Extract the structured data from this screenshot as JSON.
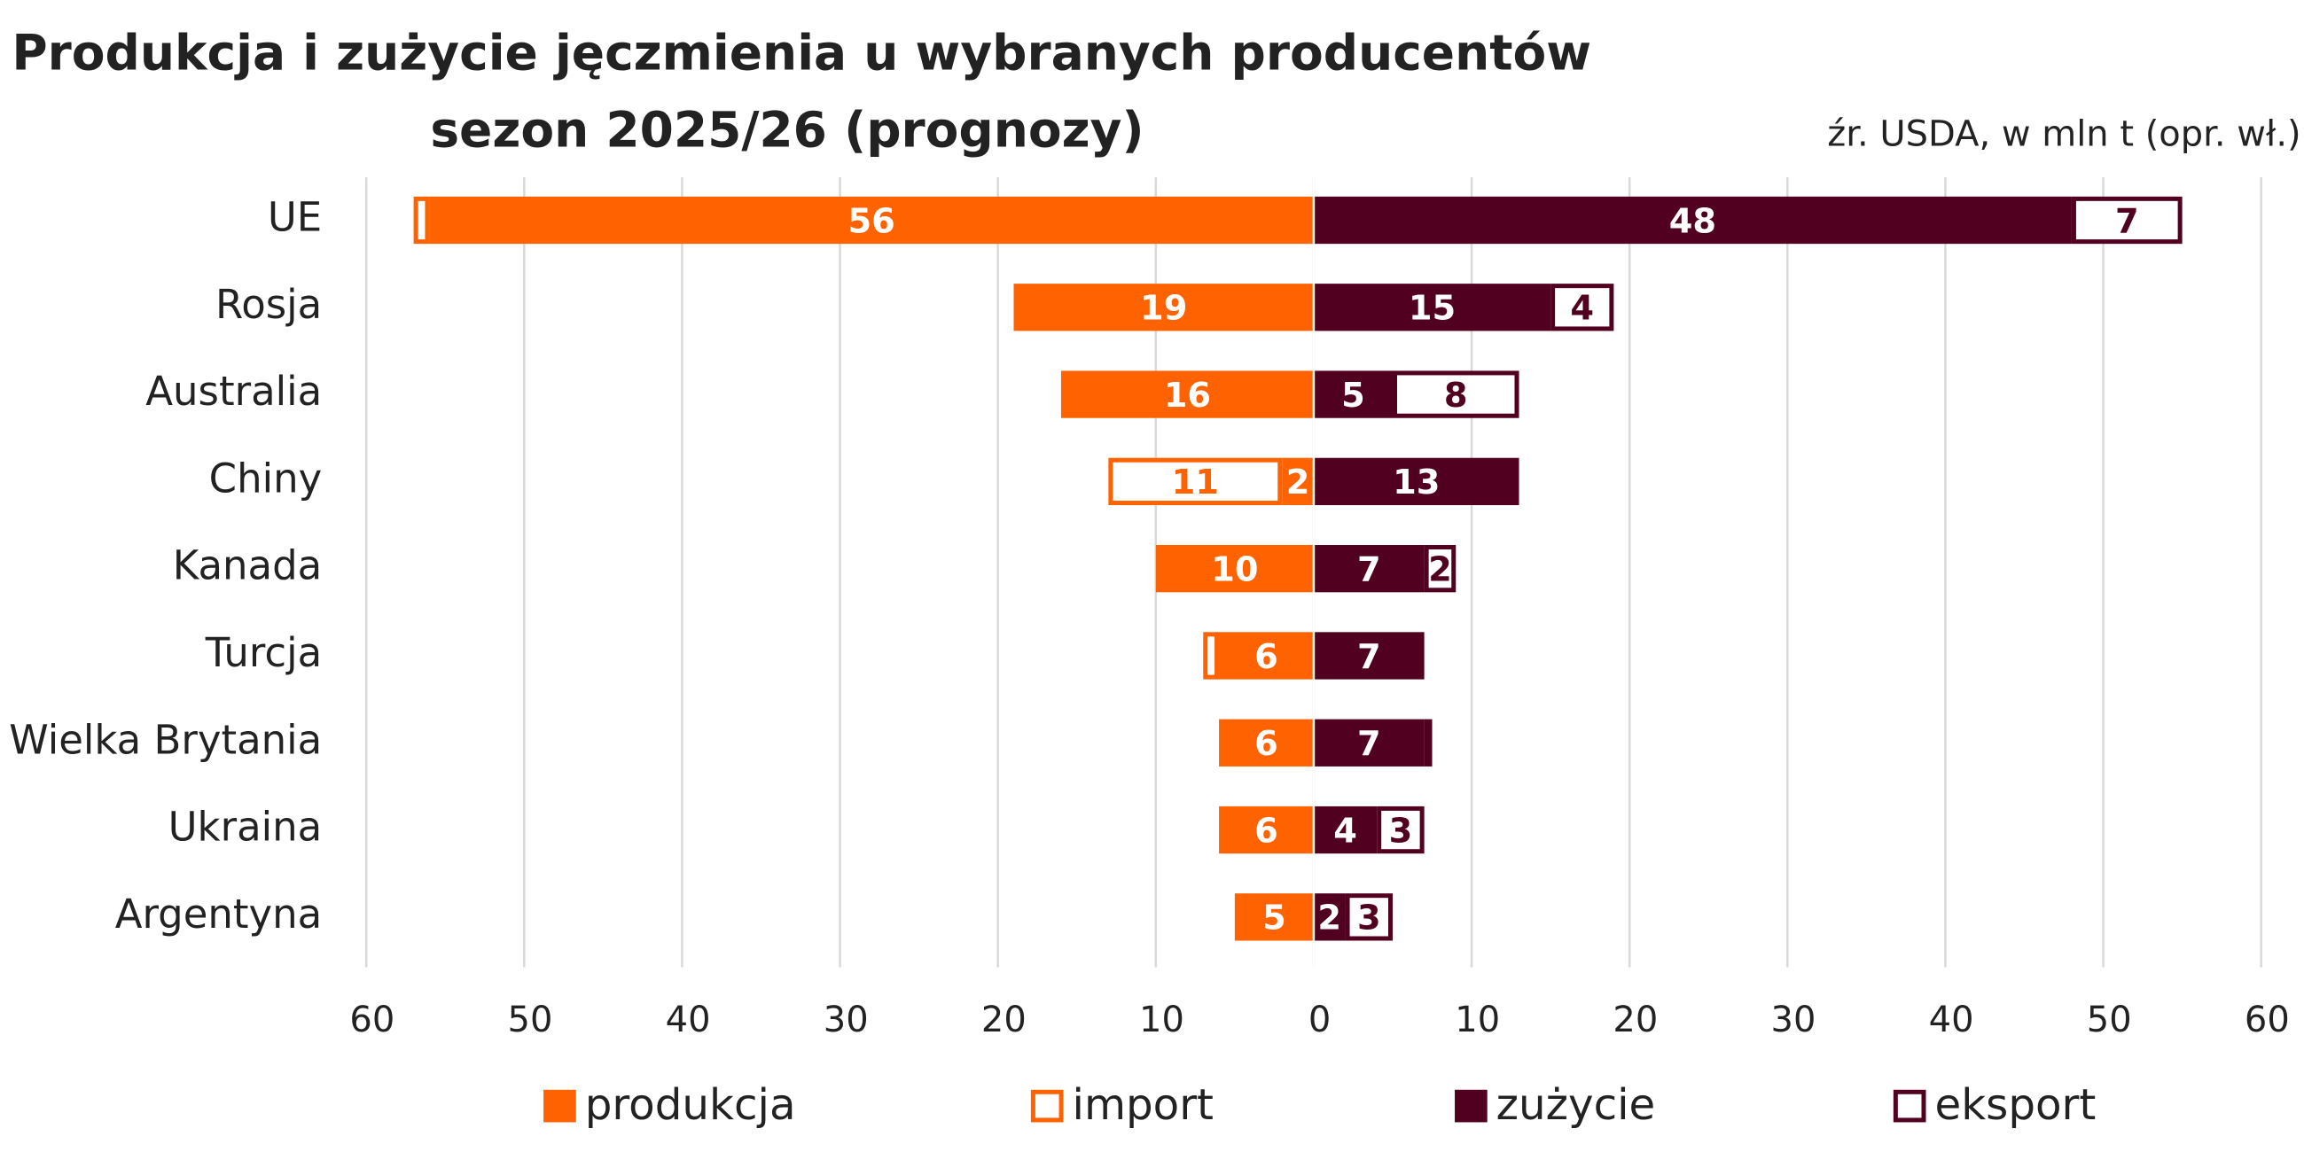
{
  "chart_data": {
    "type": "butterfly-bar",
    "title": "Produkcja i zużycie jęczmienia u wybranych producentów",
    "subtitle": "sezon 2025/26 (prognozy)",
    "source": "źr. USDA, w mln t (opr. wł.)",
    "categories": [
      "UE",
      "Rosja",
      "Australia",
      "Chiny",
      "Kanada",
      "Turcja",
      "Wielka Brytania",
      "Ukraina",
      "Argentyna"
    ],
    "series": [
      {
        "name": "produkcja",
        "color": "#ff6200",
        "filled": true,
        "side": "left",
        "values": [
          56,
          19,
          16,
          2,
          10,
          6,
          6,
          6,
          5
        ],
        "value_labels": [
          "56",
          "19",
          "16",
          "2",
          "10",
          "6",
          "6",
          "6",
          "5"
        ]
      },
      {
        "name": "import",
        "color": "#ff6200",
        "filled": false,
        "side": "left",
        "values": [
          1,
          0,
          0,
          11,
          0,
          1,
          0,
          0,
          0
        ],
        "value_labels": [
          null,
          null,
          null,
          "11",
          null,
          null,
          null,
          null,
          null
        ]
      },
      {
        "name": "zużycie",
        "color": "#520020",
        "filled": true,
        "side": "right",
        "values": [
          48,
          15,
          5,
          13,
          7,
          7,
          7,
          4,
          2
        ],
        "value_labels": [
          "48",
          "15",
          "5",
          "13",
          "7",
          "7",
          "7",
          "4",
          "2"
        ]
      },
      {
        "name": "eksport",
        "color": "#520020",
        "filled": false,
        "side": "right",
        "values": [
          7,
          4,
          8,
          0,
          2,
          0,
          0.5,
          3,
          3
        ],
        "value_labels": [
          "7",
          "4",
          "8",
          null,
          "2",
          null,
          null,
          "3",
          "3"
        ]
      }
    ],
    "xlim": [
      -60,
      60
    ],
    "xticks": [
      {
        "value": -60,
        "label": "60"
      },
      {
        "value": -50,
        "label": "50"
      },
      {
        "value": -40,
        "label": "40"
      },
      {
        "value": -30,
        "label": "30"
      },
      {
        "value": -20,
        "label": "20"
      },
      {
        "value": -10,
        "label": "10"
      },
      0,
      10,
      20,
      30,
      40,
      50,
      60
    ],
    "grid": true
  }
}
